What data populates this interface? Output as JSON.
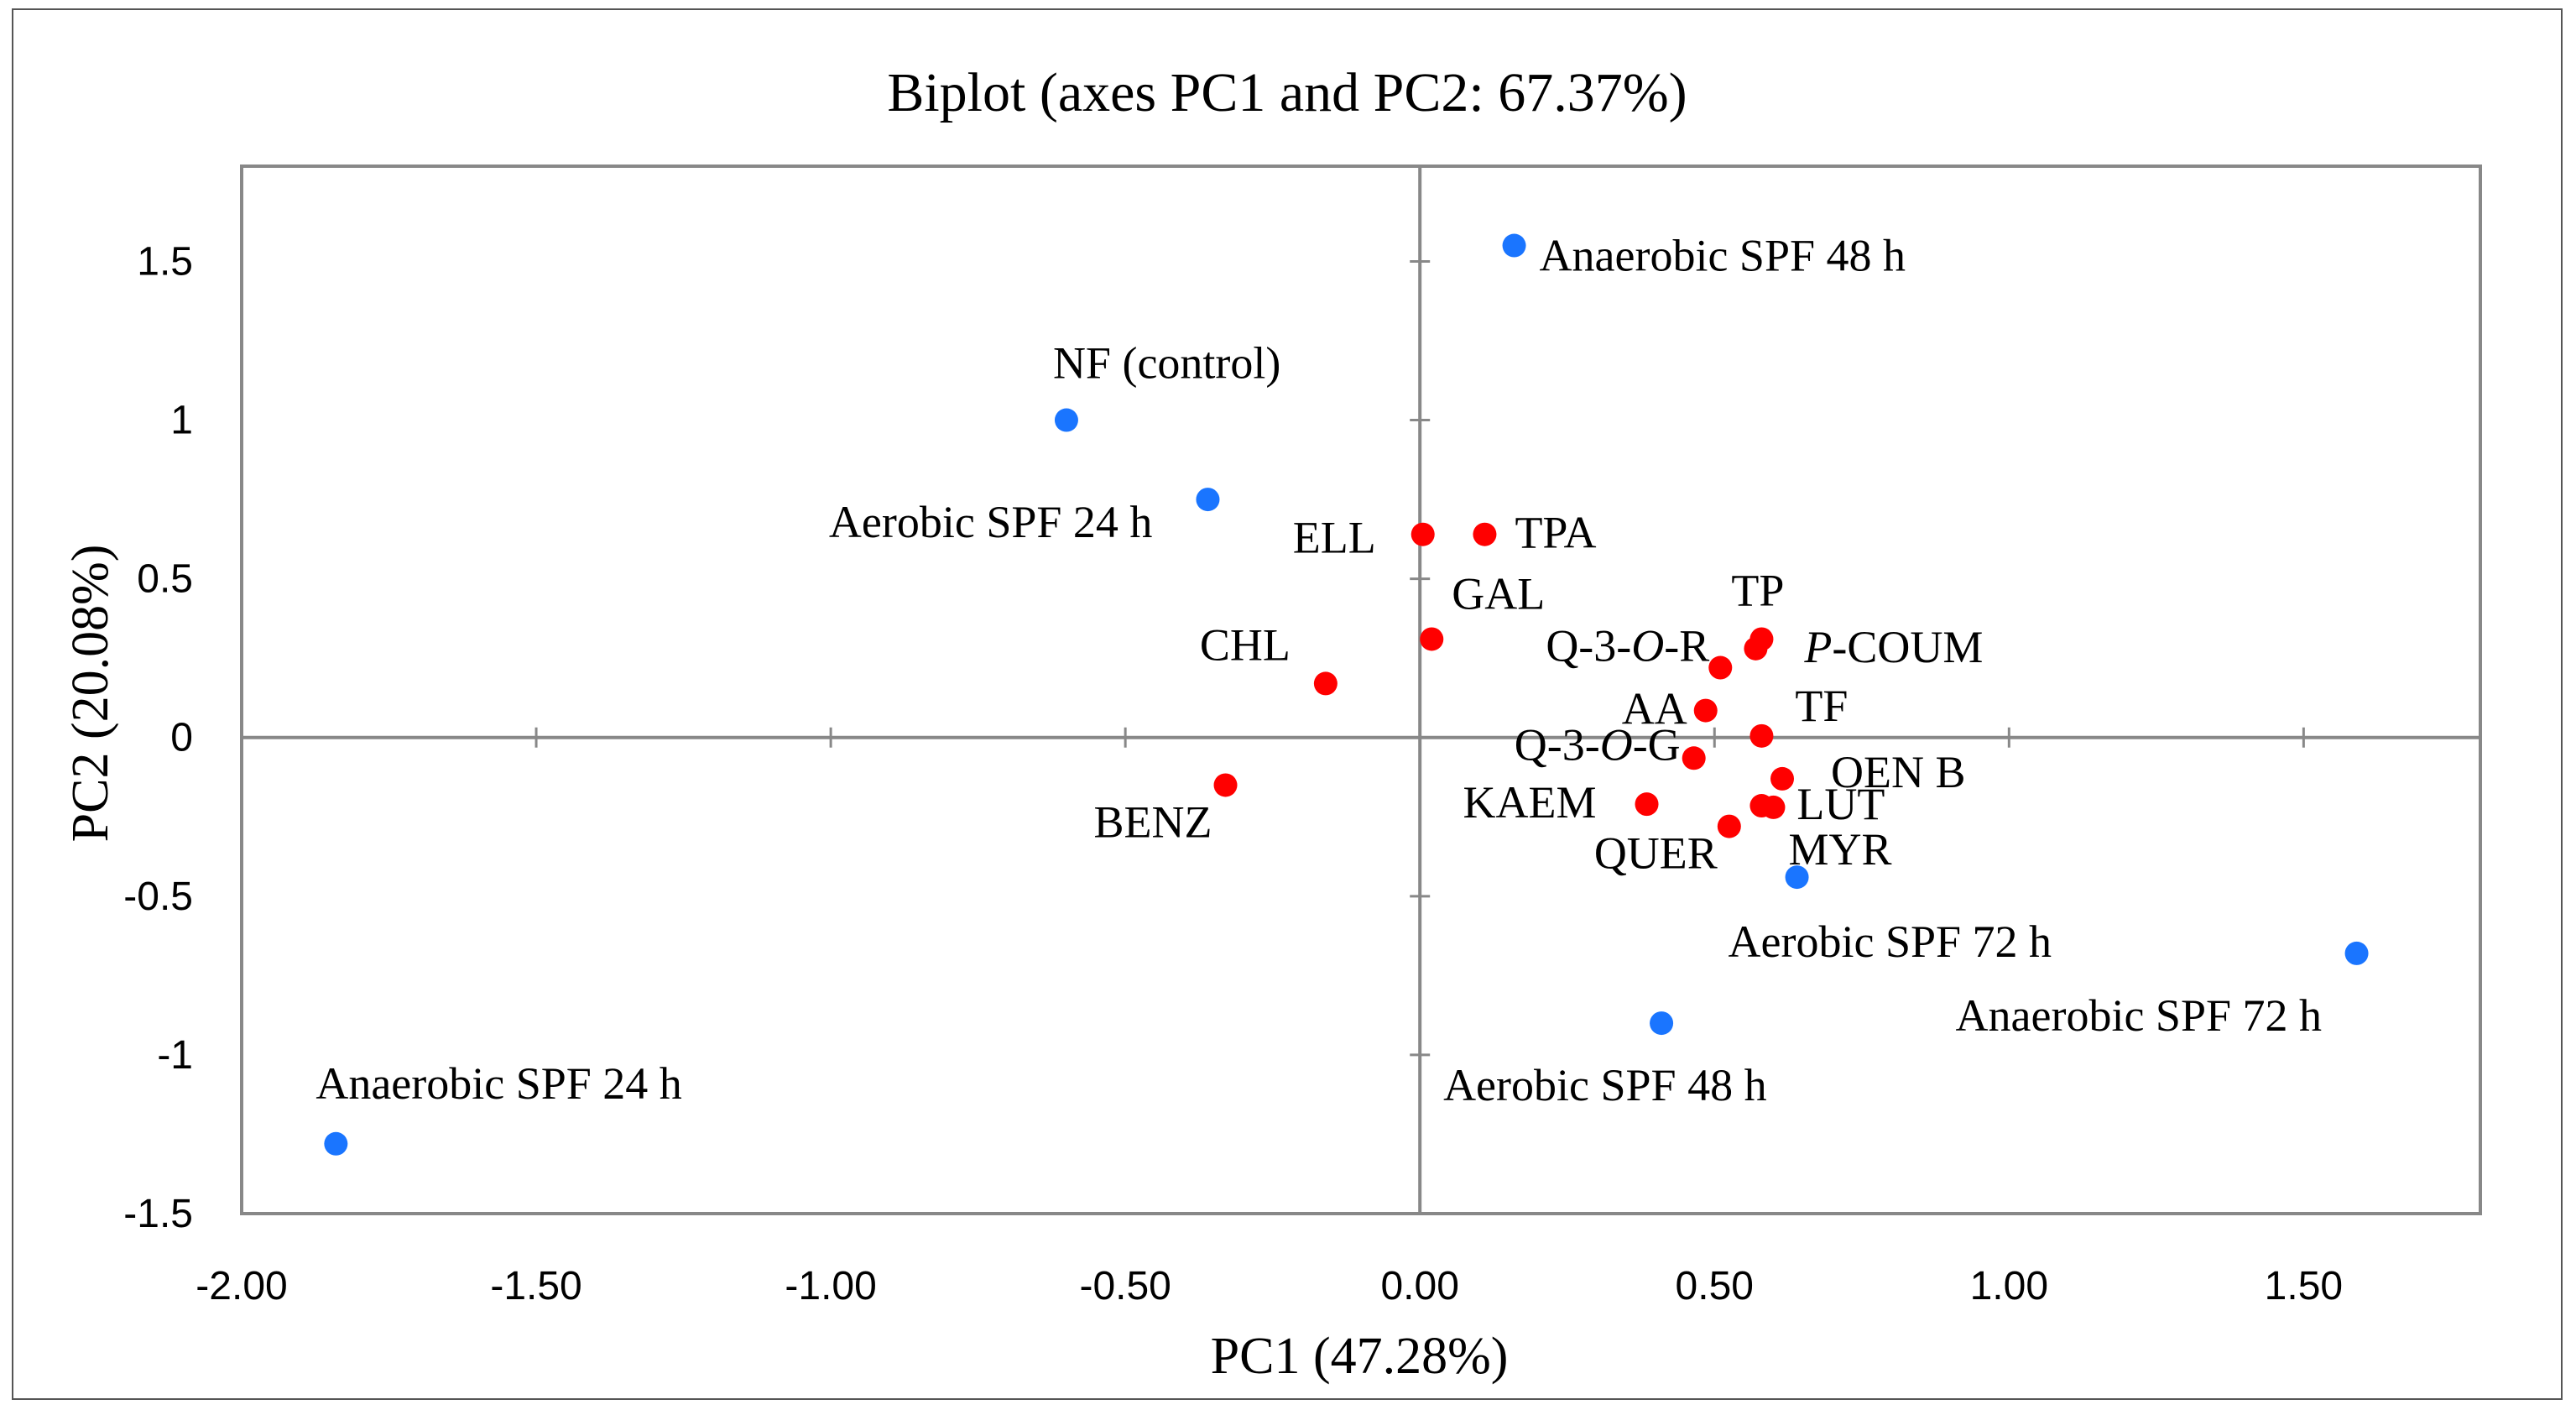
{
  "chart_data": {
    "type": "scatter",
    "title": "Biplot (axes PC1 and PC2: 67.37%)",
    "xlabel": "PC1 (47.28%)",
    "ylabel": "PC2 (20.08%)",
    "xlim": [
      -2.0,
      1.8
    ],
    "ylim": [
      -1.5,
      1.8
    ],
    "x_ticks": [
      -2.0,
      -1.5,
      -1.0,
      -0.5,
      0.0,
      0.5,
      1.0,
      1.5
    ],
    "x_tick_labels": [
      "-2.00",
      "-1.50",
      "-1.00",
      "-0.50",
      "0.00",
      "0.50",
      "1.00",
      "1.50"
    ],
    "y_ticks": [
      -1.5,
      -1,
      -0.5,
      0,
      0.5,
      1,
      1.5
    ],
    "y_tick_labels": [
      "-1.5",
      "-1",
      "-0.5",
      "0",
      "0.5",
      "1",
      "1.5"
    ],
    "grid": false,
    "legend": "none",
    "series": [
      {
        "name": "Observations",
        "color": "#1a75ff",
        "points": [
          {
            "label": "Anaerobic SPF 48 h",
            "x": 0.16,
            "y": 1.55
          },
          {
            "label": "NF (control)",
            "x": -0.6,
            "y": 1.0
          },
          {
            "label": "Aerobic SPF 24 h",
            "x": -0.36,
            "y": 0.75
          },
          {
            "label": "Aerobic SPF 72 h",
            "x": 0.64,
            "y": -0.44
          },
          {
            "label": "Anaerobic SPF 72 h",
            "x": 1.59,
            "y": -0.68
          },
          {
            "label": "Aerobic SPF 48 h",
            "x": 0.41,
            "y": -0.9
          },
          {
            "label": "Anaerobic SPF 24 h",
            "x": -1.84,
            "y": -1.28
          }
        ]
      },
      {
        "name": "Variables",
        "color": "#ff0000",
        "points": [
          {
            "label": "ELL",
            "x": 0.005,
            "y": 0.64
          },
          {
            "label": "TPA",
            "x": 0.11,
            "y": 0.64
          },
          {
            "label": "GAL",
            "x": 0.02,
            "y": 0.31
          },
          {
            "label": "CHL",
            "x": -0.16,
            "y": 0.17
          },
          {
            "label": "BENZ",
            "x": -0.33,
            "y": -0.15
          },
          {
            "label": "TP",
            "x": 0.58,
            "y": 0.31
          },
          {
            "label": "P-COUM",
            "x": 0.57,
            "y": 0.28
          },
          {
            "label": "Q-3-O-R",
            "x": 0.51,
            "y": 0.22
          },
          {
            "label": "AA",
            "x": 0.485,
            "y": 0.085
          },
          {
            "label": "TF",
            "x": 0.58,
            "y": 0.005
          },
          {
            "label": "Q-3-O-G",
            "x": 0.465,
            "y": -0.065
          },
          {
            "label": "OEN B",
            "x": 0.615,
            "y": -0.13
          },
          {
            "label": "KAEM",
            "x": 0.385,
            "y": -0.21
          },
          {
            "label": "LUT",
            "x": 0.58,
            "y": -0.215
          },
          {
            "label": "MYR",
            "x": 0.6,
            "y": -0.22
          },
          {
            "label": "QUER",
            "x": 0.525,
            "y": -0.28
          }
        ]
      }
    ]
  }
}
